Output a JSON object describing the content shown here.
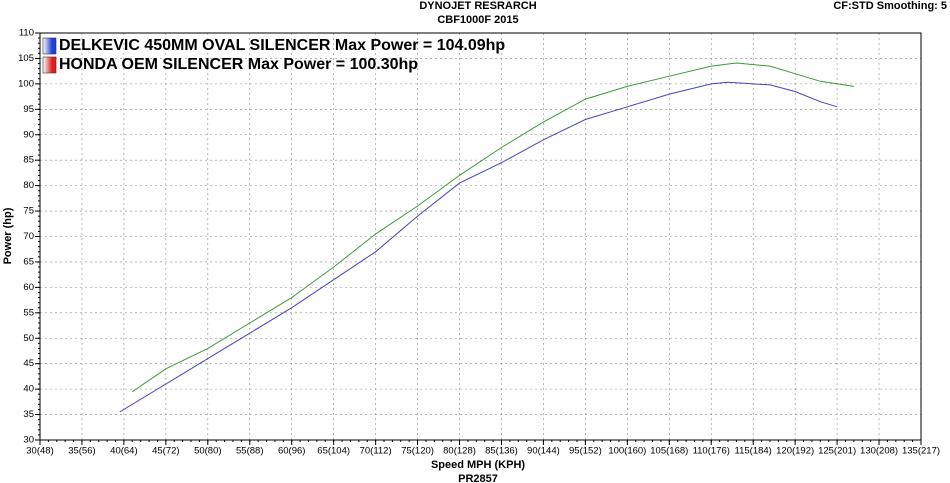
{
  "chart_data": {
    "type": "line",
    "title": "DYNOJET RESRARCH",
    "subtitle": "CBF1000F 2015",
    "corner_note": "CF:STD Smoothing: 5",
    "footer": "PR2857",
    "x_label": "Speed MPH (KPH)",
    "y_label": "Power (hp)",
    "xlim": [
      30,
      135
    ],
    "ylim": [
      30,
      110
    ],
    "xticks": [
      {
        "value": 30,
        "label": "30(48)"
      },
      {
        "value": 35,
        "label": "35(56)"
      },
      {
        "value": 40,
        "label": "40(64)"
      },
      {
        "value": 45,
        "label": "45(72)"
      },
      {
        "value": 50,
        "label": "50(80)"
      },
      {
        "value": 55,
        "label": "55(88)"
      },
      {
        "value": 60,
        "label": "60(96)"
      },
      {
        "value": 65,
        "label": "65(104)"
      },
      {
        "value": 70,
        "label": "70(112)"
      },
      {
        "value": 75,
        "label": "75(120)"
      },
      {
        "value": 80,
        "label": "80(128)"
      },
      {
        "value": 85,
        "label": "85(136)"
      },
      {
        "value": 90,
        "label": "90(144)"
      },
      {
        "value": 95,
        "label": "95(152)"
      },
      {
        "value": 100,
        "label": "100(160)"
      },
      {
        "value": 105,
        "label": "105(168)"
      },
      {
        "value": 110,
        "label": "110(176)"
      },
      {
        "value": 115,
        "label": "115(184)"
      },
      {
        "value": 120,
        "label": "120(192)"
      },
      {
        "value": 125,
        "label": "125(201)"
      },
      {
        "value": 130,
        "label": "130(208)"
      },
      {
        "value": 135,
        "label": "135(217)"
      }
    ],
    "yticks": [
      30,
      35,
      40,
      45,
      50,
      55,
      60,
      65,
      70,
      75,
      80,
      85,
      90,
      95,
      100,
      105,
      110
    ],
    "grid": true,
    "legend_position": "top-left",
    "series": [
      {
        "name": "DELKEVIC 450MM OVAL SILENCER Max Power = 104.09hp",
        "color": "#3a9a3a",
        "swatch_color": "#1f3fd8",
        "x": [
          41,
          45,
          50,
          55,
          60,
          65,
          70,
          75,
          80,
          85,
          90,
          95,
          100,
          105,
          110,
          113,
          117,
          120,
          123,
          127
        ],
        "values": [
          39.5,
          44,
          48,
          53,
          58,
          64,
          70.5,
          76,
          82,
          87.5,
          92.5,
          97,
          99.5,
          101.5,
          103.5,
          104.1,
          103.5,
          102,
          100.5,
          99.5
        ]
      },
      {
        "name": "HONDA OEM SILENCER Max Power = 100.30hp",
        "color": "#4444bb",
        "swatch_color": "#e02020",
        "x": [
          39.5,
          45,
          50,
          55,
          60,
          65,
          70,
          75,
          80,
          85,
          90,
          95,
          100,
          105,
          110,
          112,
          117,
          120,
          123,
          125
        ],
        "values": [
          35.5,
          41,
          46,
          51,
          56,
          61.5,
          67,
          74,
          80.5,
          84.5,
          89,
          93,
          95.5,
          98,
          100,
          100.3,
          99.8,
          98.5,
          96.5,
          95.5
        ]
      }
    ]
  }
}
